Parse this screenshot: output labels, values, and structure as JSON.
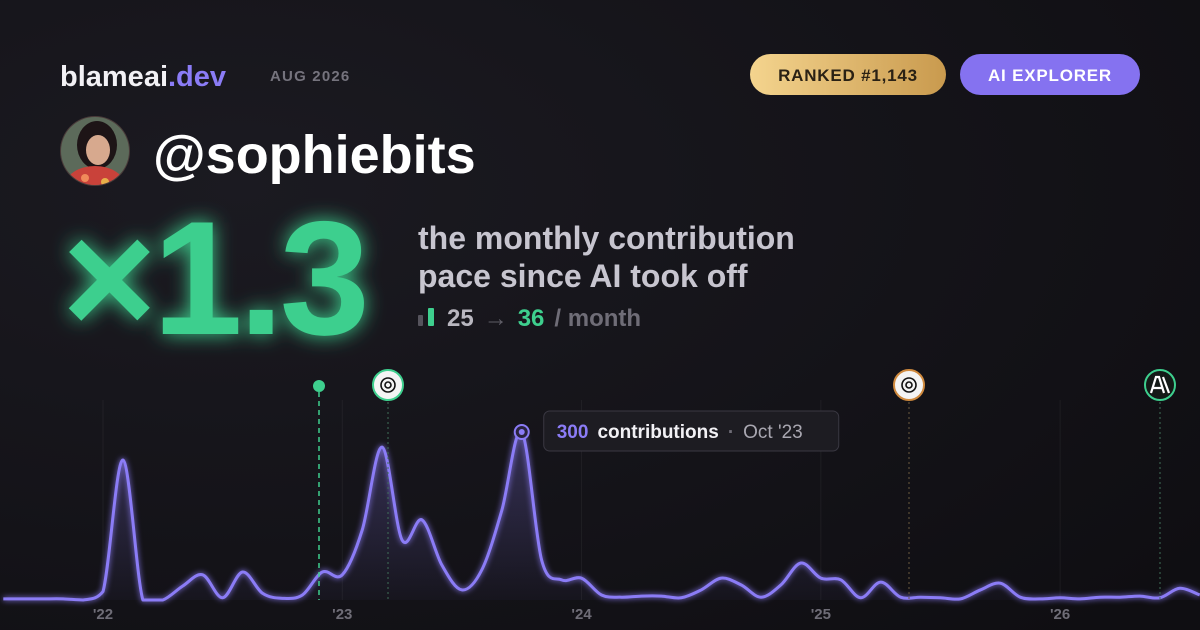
{
  "header": {
    "brand": "blameai",
    "brand_tld": ".dev",
    "date": "AUG 2026",
    "rank_badge": "RANKED #1,143",
    "tier_badge": "AI EXPLORER"
  },
  "profile": {
    "handle": "@sophiebits"
  },
  "headline": {
    "multiplier": "×1.3",
    "description_lines": [
      "the monthly contribution",
      "pace since AI took off"
    ],
    "pace_before": 25,
    "arrow": "→",
    "pace_after": 36,
    "pace_unit": "/ month"
  },
  "chart_data": {
    "type": "line",
    "categories": [
      null,
      null,
      null,
      null,
      null,
      "'22",
      null,
      null,
      null,
      null,
      null,
      null,
      null,
      null,
      null,
      null,
      null,
      "'23",
      null,
      null,
      null,
      null,
      null,
      null,
      null,
      null,
      null,
      null,
      null,
      "'24",
      null,
      null,
      null,
      null,
      null,
      null,
      null,
      null,
      null,
      null,
      null,
      "'25",
      null,
      null,
      null,
      null,
      null,
      null,
      null,
      null,
      null,
      null,
      null,
      "'26",
      null,
      null,
      null,
      null,
      null,
      null,
      null
    ],
    "series": [
      {
        "name": "contributions",
        "color": "#8b7cf6",
        "values": [
          2,
          2,
          2,
          2,
          0,
          15,
          250,
          0,
          0,
          25,
          45,
          4,
          50,
          12,
          3,
          9,
          50,
          45,
          125,
          273,
          107,
          143,
          62,
          18,
          54,
          160,
          300,
          71,
          36,
          39,
          9,
          5,
          7,
          7,
          4,
          18,
          39,
          27,
          5,
          27,
          66,
          39,
          36,
          4,
          32,
          5,
          5,
          4,
          2,
          18,
          30,
          5,
          2,
          4,
          2,
          5,
          5,
          7,
          4,
          21,
          9
        ]
      }
    ],
    "ylim": [
      0,
      300
    ],
    "tooltip": {
      "separator": "·",
      "date": "Oct '23"
    }
  }
}
